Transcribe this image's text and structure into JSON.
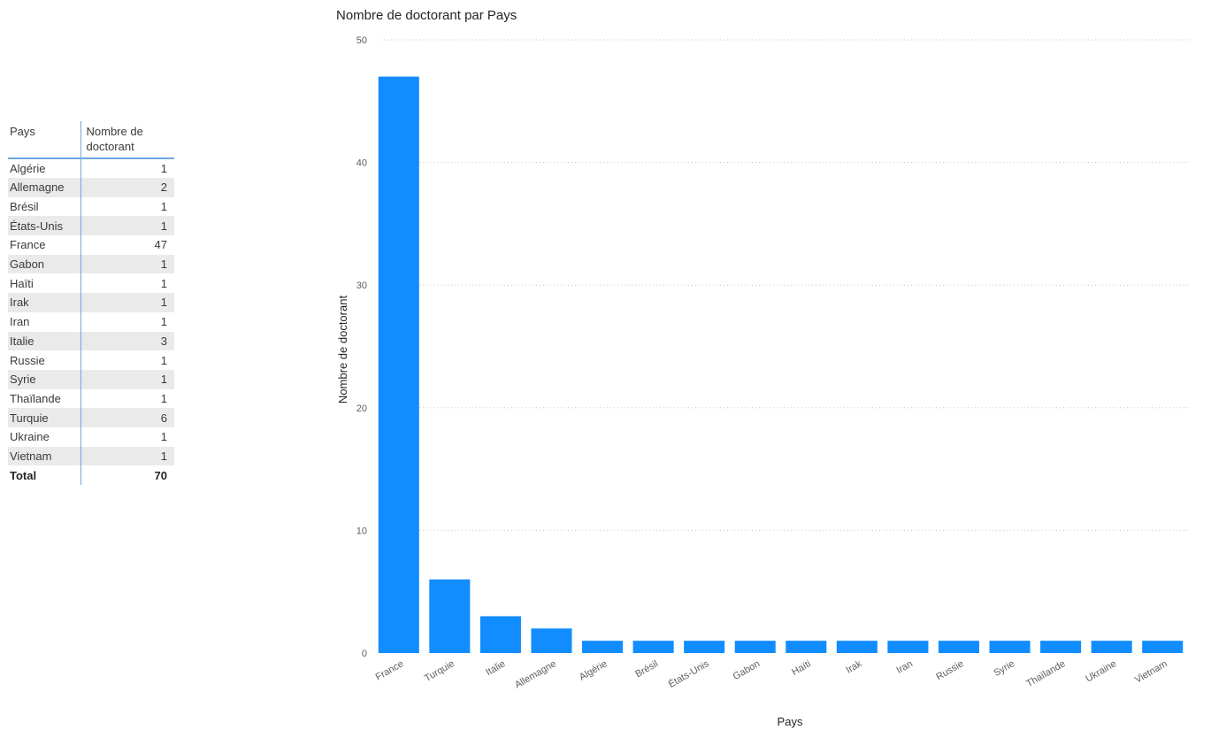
{
  "table": {
    "headers": [
      "Pays",
      "Nombre de doctorant"
    ],
    "rows": [
      {
        "country": "Algérie",
        "count": "1"
      },
      {
        "country": "Allemagne",
        "count": "2"
      },
      {
        "country": "Brésil",
        "count": "1"
      },
      {
        "country": "États-Unis",
        "count": "1"
      },
      {
        "country": "France",
        "count": "47"
      },
      {
        "country": "Gabon",
        "count": "1"
      },
      {
        "country": "Haïti",
        "count": "1"
      },
      {
        "country": "Irak",
        "count": "1"
      },
      {
        "country": "Iran",
        "count": "1"
      },
      {
        "country": "Italie",
        "count": "3"
      },
      {
        "country": "Russie",
        "count": "1"
      },
      {
        "country": "Syrie",
        "count": "1"
      },
      {
        "country": "Thaïlande",
        "count": "1"
      },
      {
        "country": "Turquie",
        "count": "6"
      },
      {
        "country": "Ukraine",
        "count": "1"
      },
      {
        "country": "Vietnam",
        "count": "1"
      }
    ],
    "total_label": "Total",
    "total_value": "70",
    "accent_color": "#6fa6e0",
    "stripe_color": "#eaeaea"
  },
  "chart_data": {
    "type": "bar",
    "title": "Nombre de doctorant par Pays",
    "xlabel": "Pays",
    "ylabel": "Nombre de doctorant",
    "categories": [
      "France",
      "Turquie",
      "Italie",
      "Allemagne",
      "Algérie",
      "Brésil",
      "États-Unis",
      "Gabon",
      "Haïti",
      "Irak",
      "Iran",
      "Russie",
      "Syrie",
      "Thaïlande",
      "Ukraine",
      "Vietnam"
    ],
    "values": [
      47,
      6,
      3,
      2,
      1,
      1,
      1,
      1,
      1,
      1,
      1,
      1,
      1,
      1,
      1,
      1
    ],
    "ylim": [
      0,
      50
    ],
    "yticks": [
      0,
      10,
      20,
      30,
      40,
      50
    ],
    "grid": true,
    "bar_color": "#118dff",
    "grid_color": "#c8c6c4"
  }
}
